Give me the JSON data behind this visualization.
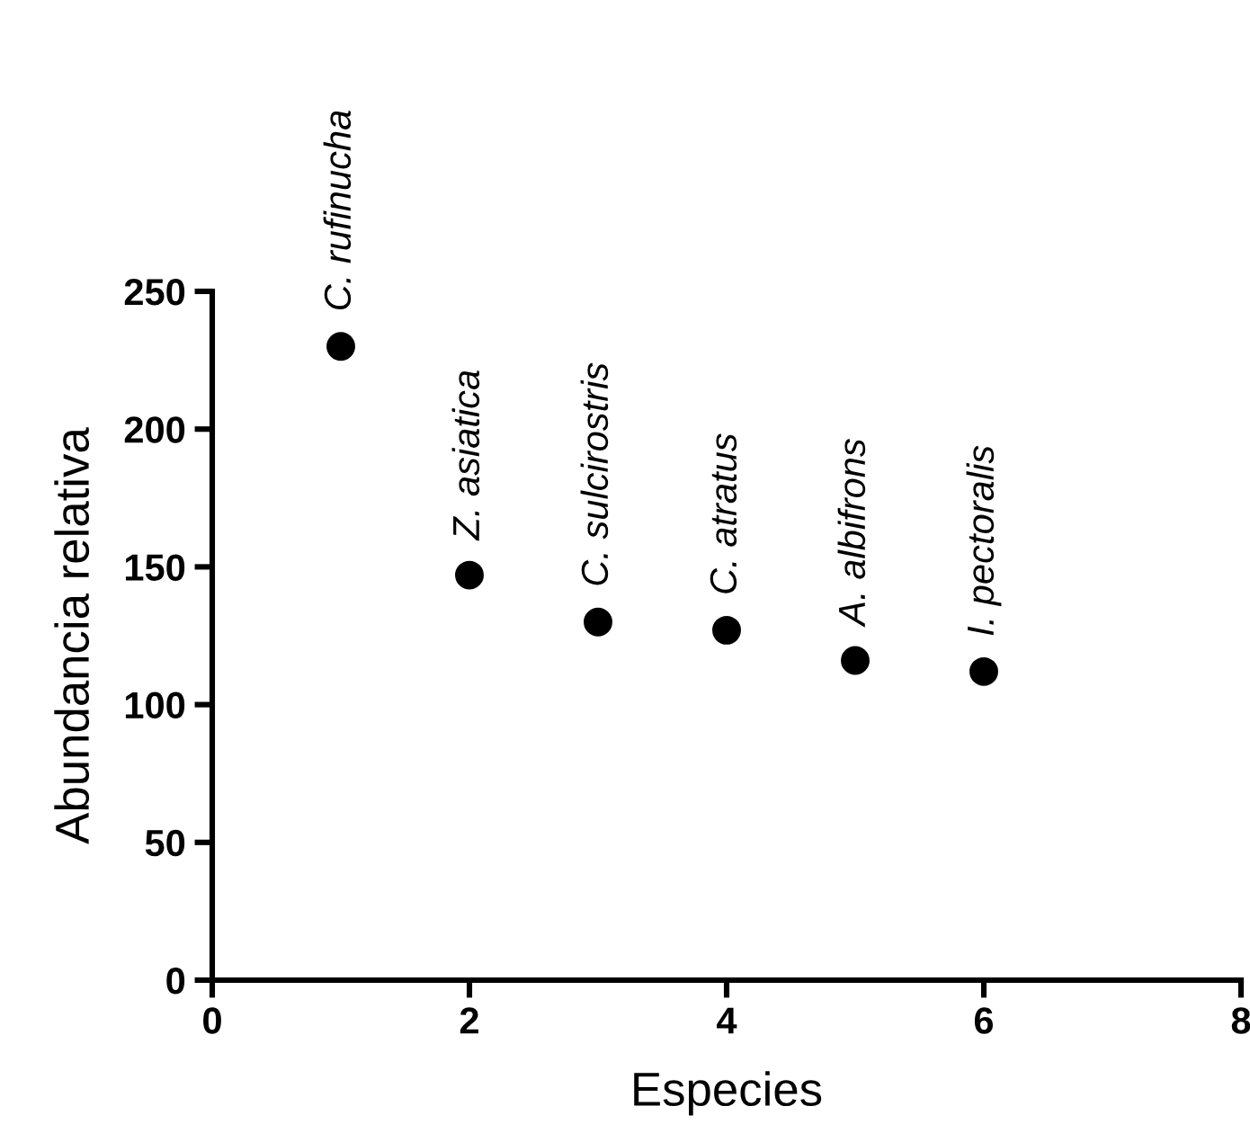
{
  "chart_data": {
    "type": "scatter",
    "xlabel": "Especies",
    "ylabel": "Abundancia relativa",
    "x": [
      1,
      2,
      3,
      4,
      5,
      6
    ],
    "values": [
      230,
      147,
      130,
      127,
      116,
      112
    ],
    "color": "#000000",
    "marker": "circle",
    "grid": false,
    "legend": false,
    "xlim": [
      0,
      8
    ],
    "xticks": [
      0,
      2,
      4,
      6,
      8
    ],
    "ylim": [
      0,
      250
    ],
    "yticks": [
      0,
      50,
      100,
      150,
      200,
      250
    ],
    "annotations": [
      {
        "text": "C. rufinucha",
        "x": 1,
        "y": 230
      },
      {
        "text": "Z. asiatica",
        "x": 2,
        "y": 147
      },
      {
        "text": "C. sulcirostris",
        "x": 3,
        "y": 130
      },
      {
        "text": "C. atratus",
        "x": 4,
        "y": 127
      },
      {
        "text": "A. albifrons",
        "x": 5,
        "y": 116
      },
      {
        "text": "I. pectoralis",
        "x": 6,
        "y": 112
      }
    ]
  }
}
